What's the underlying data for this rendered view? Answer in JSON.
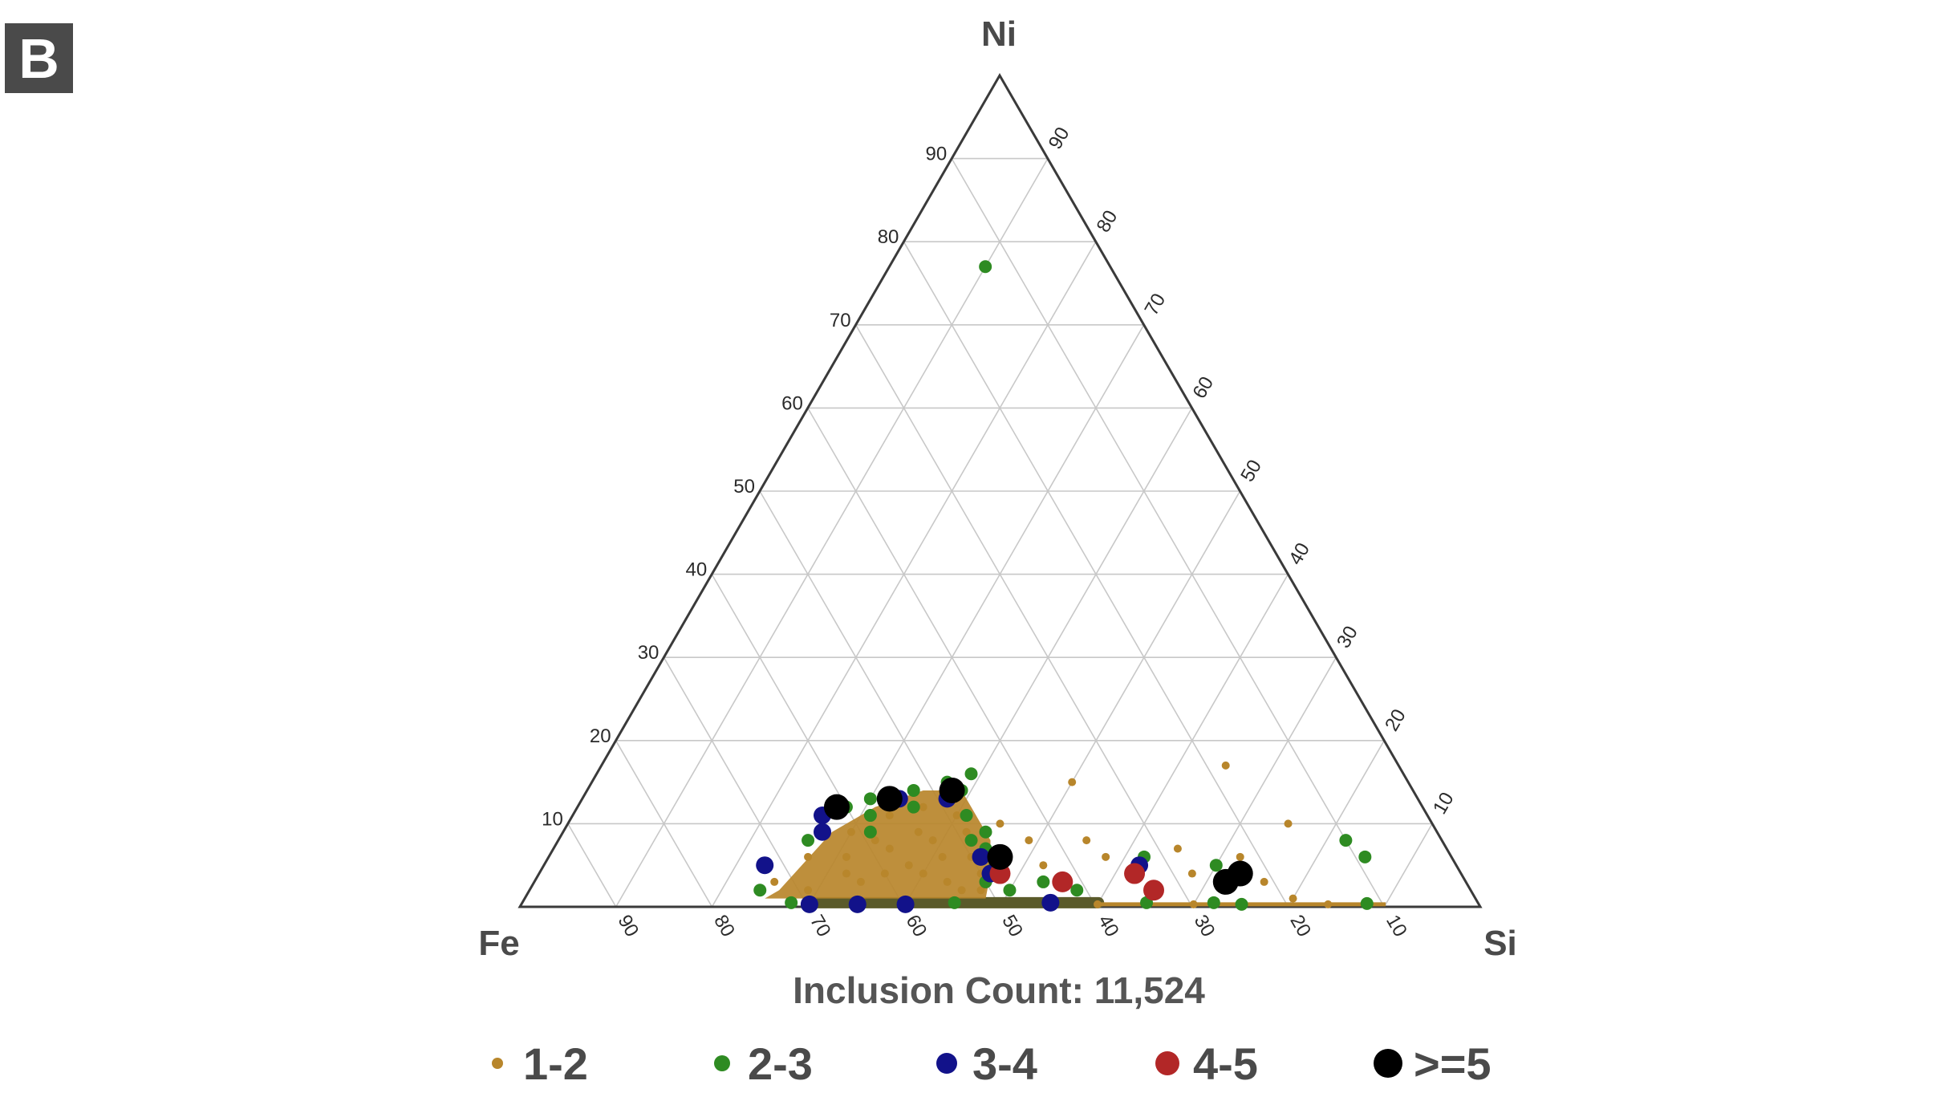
{
  "panel_label": "B",
  "chart_data": {
    "type": "scatter",
    "subtype": "ternary",
    "axes": {
      "top": "Ni",
      "left": "Fe",
      "right": "Si"
    },
    "ticks": {
      "ni": [
        "10",
        "20",
        "30",
        "40",
        "50",
        "60",
        "70",
        "80",
        "90"
      ],
      "si": [
        "10",
        "20",
        "30",
        "40",
        "50",
        "60",
        "70",
        "80",
        "90"
      ],
      "fe": [
        "90",
        "80",
        "70",
        "60",
        "50",
        "40",
        "30",
        "20",
        "10"
      ]
    },
    "grid": true,
    "annotation": "Inclusion Count: 11,524",
    "legend_position": "bottom",
    "series": [
      {
        "name": "1-2",
        "color": "#b8862b",
        "size_rank": 1,
        "points": [
          [
            25,
            3
          ],
          [
            27,
            6
          ],
          [
            30,
            9
          ],
          [
            33,
            11
          ],
          [
            36,
            12
          ],
          [
            38,
            13
          ],
          [
            40,
            11
          ],
          [
            42,
            9
          ],
          [
            44,
            6
          ],
          [
            46,
            4
          ],
          [
            29,
            2
          ],
          [
            32,
            4
          ],
          [
            35,
            7
          ],
          [
            37,
            9
          ],
          [
            39,
            8
          ],
          [
            41,
            6
          ],
          [
            34,
            3
          ],
          [
            31,
            6
          ],
          [
            43,
            3
          ],
          [
            45,
            2
          ],
          [
            38,
            5
          ],
          [
            36,
            4
          ],
          [
            33,
            8
          ],
          [
            40,
            4
          ],
          [
            47,
            2
          ],
          [
            52,
            5
          ],
          [
            55,
            8
          ],
          [
            58,
            6
          ],
          [
            62,
            4
          ],
          [
            65,
            7
          ],
          [
            68,
            4
          ],
          [
            72,
            6
          ],
          [
            76,
            3
          ],
          [
            80,
            1
          ],
          [
            84,
            0.3
          ],
          [
            60,
            0.3
          ],
          [
            70,
            0.3
          ],
          [
            50,
            15
          ],
          [
            65,
            17
          ],
          [
            49,
            8
          ],
          [
            45,
            10
          ],
          [
            55,
            3
          ],
          [
            75,
            10
          ]
        ]
      },
      {
        "name": "2-3",
        "color": "#2e8b22",
        "size_rank": 2,
        "points": [
          [
            26,
            8
          ],
          [
            28,
            12
          ],
          [
            30,
            13
          ],
          [
            34,
            14
          ],
          [
            37,
            15
          ],
          [
            39,
            14
          ],
          [
            41,
            11
          ],
          [
            43,
            8
          ],
          [
            45,
            7
          ],
          [
            47,
            5
          ],
          [
            35,
            12
          ],
          [
            31,
            11
          ],
          [
            32,
            9
          ],
          [
            24,
            2
          ],
          [
            28,
            0.5
          ],
          [
            45,
            0.5
          ],
          [
            55,
            0.5
          ],
          [
            65,
            0.5
          ],
          [
            72,
            0.5
          ],
          [
            75,
            0.3
          ],
          [
            88,
            0.4
          ],
          [
            82,
            8
          ],
          [
            85,
            6
          ],
          [
            10,
            77
          ],
          [
            39,
            16
          ],
          [
            44,
            9
          ],
          [
            47,
            3
          ],
          [
            50,
            2
          ],
          [
            53,
            3
          ],
          [
            62,
            6
          ],
          [
            70,
            5
          ],
          [
            57,
            2
          ]
        ]
      },
      {
        "name": "3-4",
        "color": "#12128a",
        "size_rank": 3,
        "points": [
          [
            23,
            5
          ],
          [
            26,
            11
          ],
          [
            27,
            9
          ],
          [
            33,
            13
          ],
          [
            38,
            13
          ],
          [
            45,
            6
          ],
          [
            47,
            4
          ],
          [
            55,
            0.5
          ],
          [
            62,
            5
          ],
          [
            40,
            0.3
          ],
          [
            30,
            0.3
          ],
          [
            35,
            0.3
          ]
        ]
      },
      {
        "name": "4-5",
        "color": "#b22727",
        "size_rank": 4,
        "points": [
          [
            55,
            3
          ],
          [
            62,
            4
          ],
          [
            65,
            2
          ],
          [
            48,
            4
          ]
        ]
      },
      {
        "name": ">=5",
        "color": "#000000",
        "size_rank": 5,
        "points": [
          [
            27,
            12
          ],
          [
            32,
            13
          ],
          [
            47,
            6
          ],
          [
            72,
            3
          ],
          [
            73,
            4
          ],
          [
            38,
            14
          ]
        ]
      }
    ]
  }
}
